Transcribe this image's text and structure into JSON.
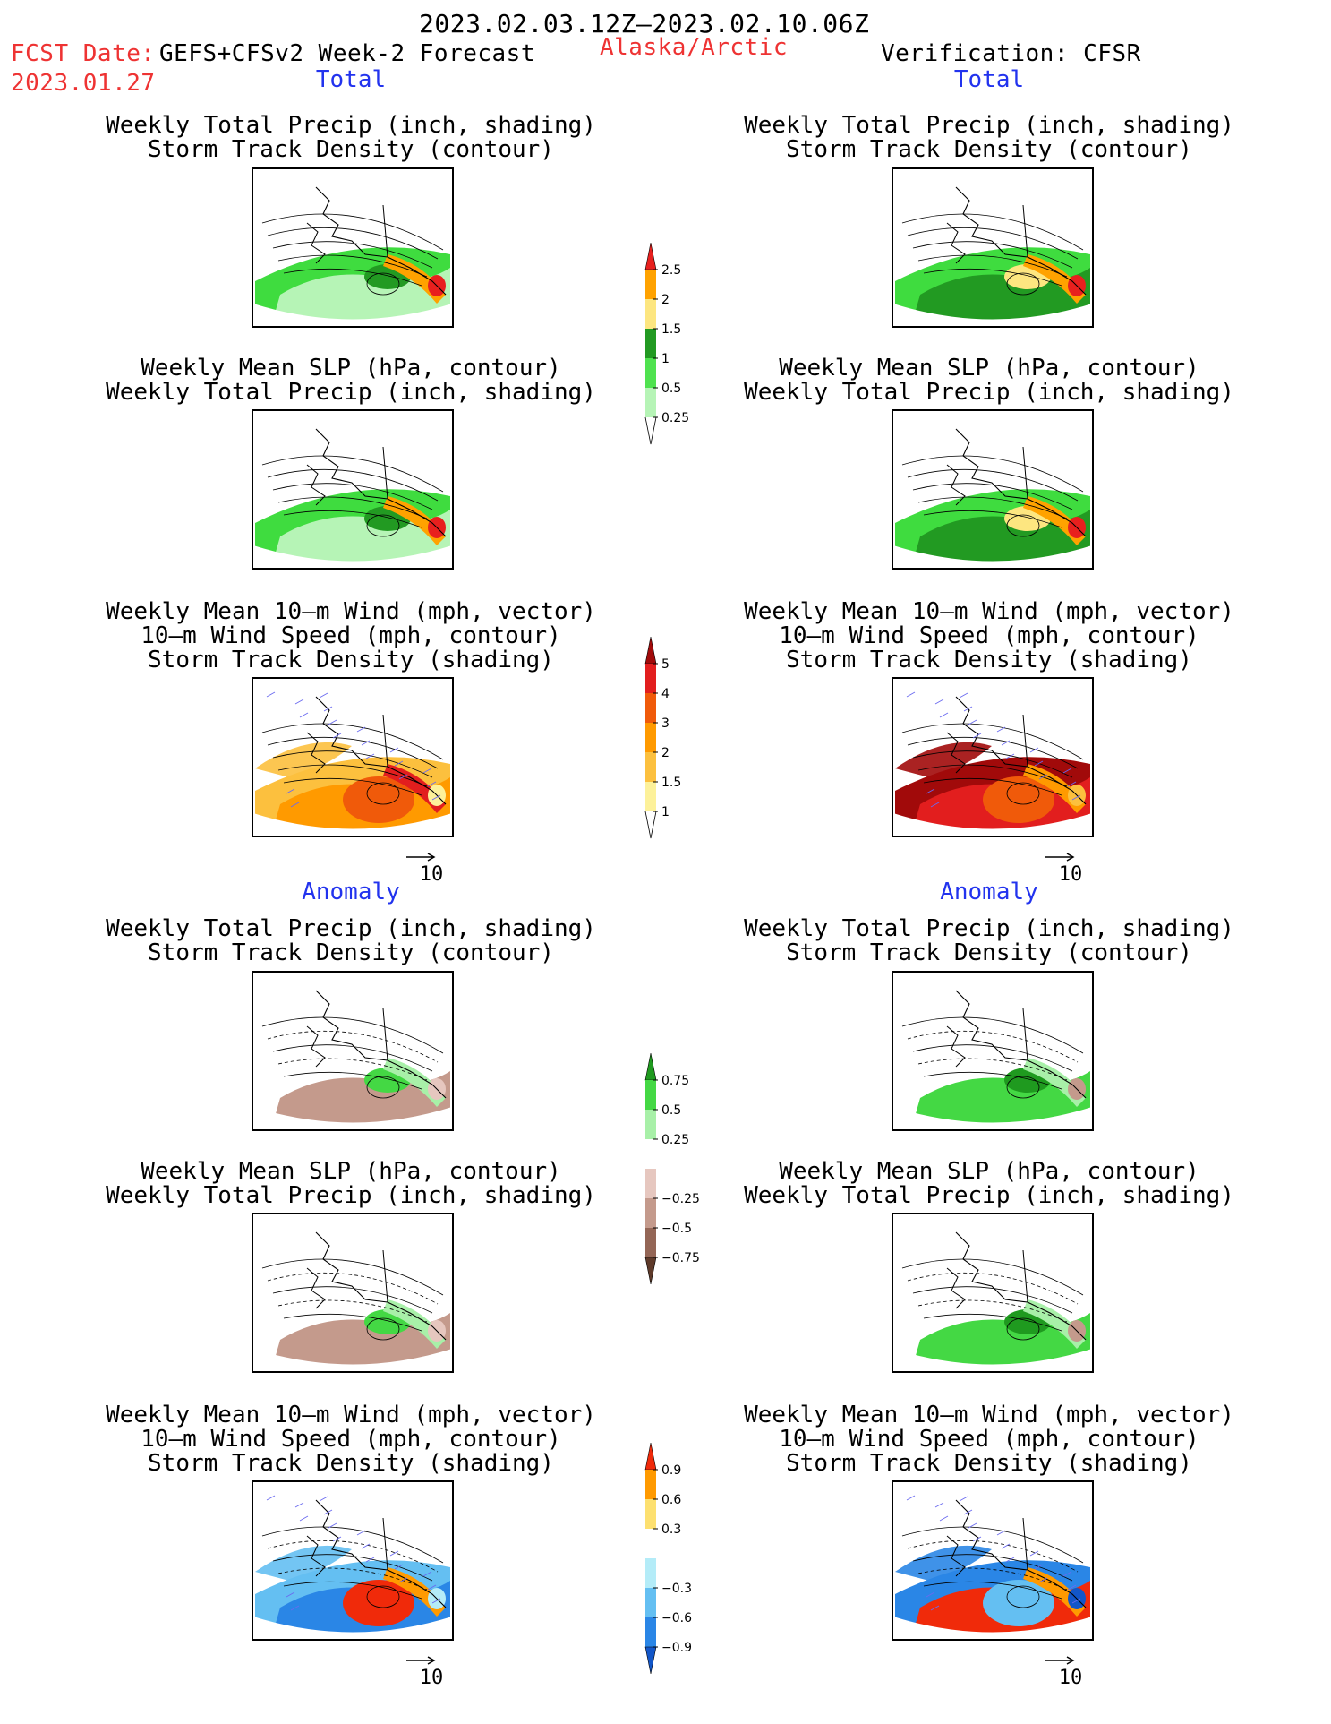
{
  "header": {
    "date_range": "2023.02.03.12Z—2023.02.10.06Z",
    "fcst_label": "FCST Date:",
    "fcst_model": "GEFS+CFSv2 Week-2 Forecast",
    "fcst_date": "2023.01.27",
    "region": "Alaska/Arctic",
    "verification": "Verification: CFSR"
  },
  "sections": {
    "total": "Total",
    "anomaly": "Anomaly"
  },
  "captions": {
    "precip_track": [
      "Weekly Total Precip (inch, shading)",
      "Storm Track Density (contour)"
    ],
    "slp_precip": [
      "Weekly Mean SLP (hPa, contour)",
      "Weekly Total Precip (inch, shading)"
    ],
    "wind_track": [
      "Weekly Mean 10—m Wind (mph, vector)",
      "10—m Wind Speed (mph, contour)",
      "Storm Track Density (shading)"
    ]
  },
  "vector_reference": "10",
  "colorbars": {
    "precip_total": {
      "labels": [
        "2.5",
        "2",
        "1.5",
        "1",
        "0.5",
        "0.25"
      ],
      "colors": [
        "#e8201e",
        "#ffa200",
        "#fde680",
        "#229a22",
        "#4fe24f",
        "#b6f4b6"
      ]
    },
    "storm_total": {
      "labels": [
        "5",
        "4",
        "3",
        "2",
        "1.5",
        "1"
      ],
      "colors": [
        "#a10a0a",
        "#e21e1e",
        "#f05a0a",
        "#ff9a00",
        "#fcc03e",
        "#fdf19a"
      ]
    },
    "precip_anom": {
      "labels": [
        "0.75",
        "0.5",
        "0.25",
        "−0.25",
        "−0.5",
        "−0.75"
      ],
      "colors": [
        "#1f9a1f",
        "#44d844",
        "#a8f0a8",
        "#ffffff",
        "#e6c7bf",
        "#c49a8c",
        "#946656",
        "#5e3a2a"
      ]
    },
    "storm_anom": {
      "labels": [
        "0.9",
        "0.6",
        "0.3",
        "−0.3",
        "−0.6",
        "−0.9"
      ],
      "colors": [
        "#f02a0a",
        "#ff9a00",
        "#fde070",
        "#ffffff",
        "#b4ecf8",
        "#64bff2",
        "#2a86e6",
        "#1256c8"
      ]
    }
  },
  "colors": {
    "title_red": "#ee3333",
    "section_blue": "#2233ee",
    "vector_blue": "#6a6af0"
  }
}
